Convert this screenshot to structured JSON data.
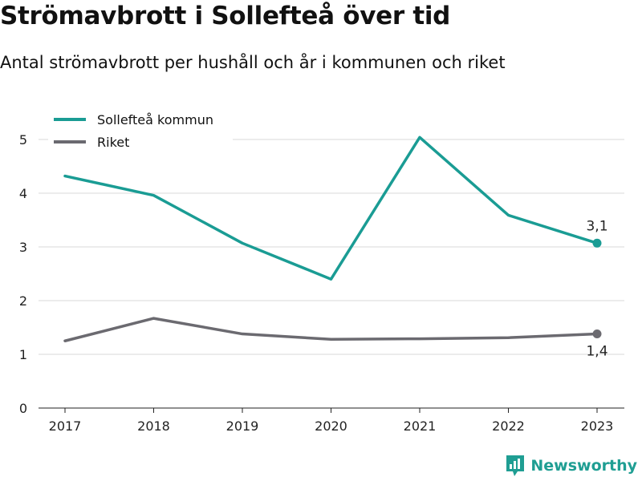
{
  "chart_data": {
    "type": "line",
    "title": "Strömavbrott i Sollefteå över tid",
    "subtitle": "Antal strömavbrott per hushåll och år i kommunen och riket",
    "x": [
      "2017",
      "2018",
      "2019",
      "2020",
      "2021",
      "2022",
      "2023"
    ],
    "y_ticks": [
      "0",
      "1",
      "2",
      "3",
      "4",
      "5"
    ],
    "ylim": [
      0,
      5.5
    ],
    "grid": true,
    "legend_position": "top-left",
    "series": [
      {
        "name": "Sollefteå kommun",
        "color": "#1a9c94",
        "values": [
          4.32,
          3.96,
          3.07,
          2.4,
          5.04,
          3.59,
          3.07
        ],
        "end_label": "3,1"
      },
      {
        "name": "Riket",
        "color": "#6b6a70",
        "values": [
          1.25,
          1.67,
          1.38,
          1.28,
          1.29,
          1.31,
          1.38
        ],
        "end_label": "1,4"
      }
    ]
  },
  "brand": {
    "name": "Newsworthy",
    "color": "#1f9e93",
    "icon": "newsworthy-logo-icon"
  }
}
